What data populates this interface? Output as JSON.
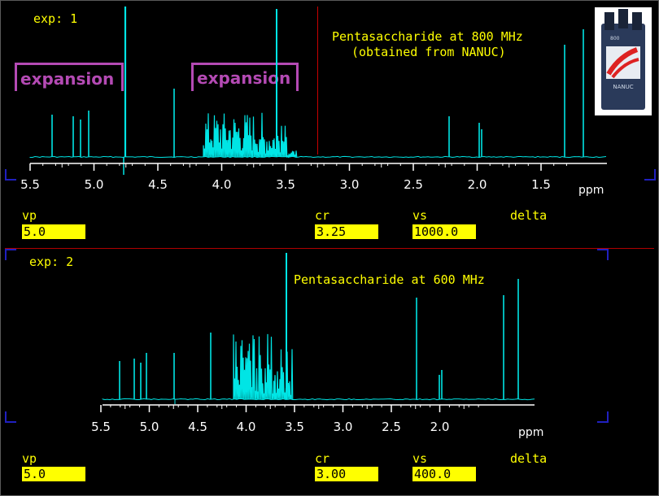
{
  "panel1": {
    "exp_label": "exp: 1",
    "title_line1": "Pentasaccharide at 800 MHz",
    "title_line2": "(obtained from NANUC)",
    "expansion_labels": [
      "expansion",
      "expansion"
    ],
    "axis_ticks": [
      "5.5",
      "5.0",
      "4.5",
      "4.0",
      "3.5",
      "3.0",
      "2.5",
      "2.0",
      "1.5"
    ],
    "axis_unit": "ppm",
    "fields": {
      "vp_label": "vp",
      "vp_value": "5.0",
      "cr_label": "cr",
      "cr_value": "3.25",
      "vs_label": "vs",
      "vs_value": "1000.0",
      "delta_label": "delta"
    },
    "logo_text": "NANUC",
    "logo_number": "800"
  },
  "panel2": {
    "exp_label": "exp: 2",
    "title": "Pentasaccharide at 600 MHz",
    "axis_ticks": [
      "5.5",
      "5.0",
      "4.5",
      "4.0",
      "3.5",
      "3.0",
      "2.5",
      "2.0"
    ],
    "axis_unit": "ppm",
    "fields": {
      "vp_label": "vp",
      "vp_value": "5.0",
      "cr_label": "cr",
      "cr_value": "3.00",
      "vs_label": "vs",
      "vs_value": "400.0",
      "delta_label": "delta"
    }
  },
  "colors": {
    "background": "#000000",
    "spectrum": "#00e5e5",
    "text": "#ffff00",
    "expansion": "#b44ab4",
    "cursor": "#c80000"
  }
}
